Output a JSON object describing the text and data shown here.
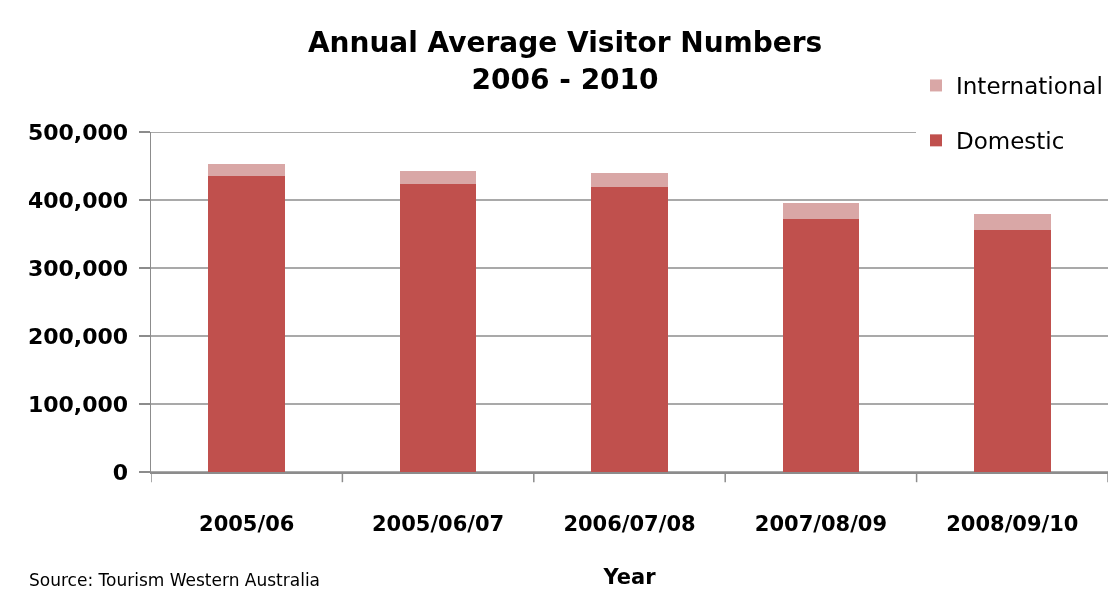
{
  "chart_data": {
    "type": "bar",
    "title": "Annual Average Visitor Numbers\n2006 - 2010",
    "xlabel": "Year",
    "categories": [
      "2005/06",
      "2005/06/07",
      "2006/07/08",
      "2007/08/09",
      "2008/09/10"
    ],
    "series": [
      {
        "name": "Domestic",
        "color": "#c0504d",
        "values": [
          436000,
          423000,
          419000,
          372000,
          356000
        ]
      },
      {
        "name": "International",
        "color": "#d9a7a6",
        "values": [
          17000,
          20000,
          20000,
          23000,
          23000
        ]
      }
    ],
    "stacked": true,
    "ylim": [
      0,
      500000
    ],
    "yticks": [
      {
        "value": 0,
        "label": "0"
      },
      {
        "value": 100000,
        "label": "100,000"
      },
      {
        "value": 200000,
        "label": "200,000"
      },
      {
        "value": 300000,
        "label": "300,000"
      },
      {
        "value": 400000,
        "label": "400,000"
      },
      {
        "value": 500000,
        "label": "500,000"
      }
    ],
    "grid": "y",
    "legend": "top right",
    "annotations": [
      "Source: Tourism Western Australia"
    ]
  }
}
